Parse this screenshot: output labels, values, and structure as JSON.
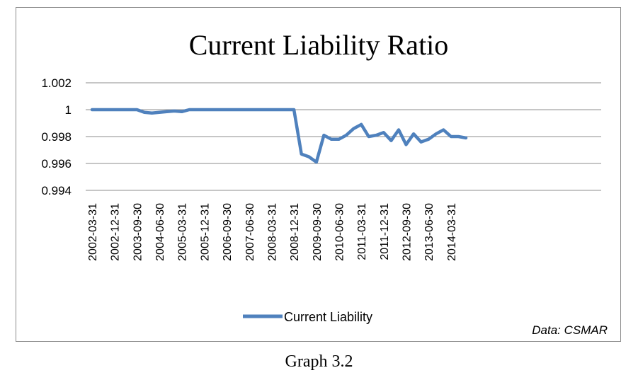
{
  "chart_data": {
    "type": "line",
    "title": "Current Liability Ratio",
    "y_ticks": [
      "1.002",
      "1",
      "0.998",
      "0.996",
      "0.994"
    ],
    "ylim": [
      0.994,
      1.002
    ],
    "x_tick_labels": [
      "2002-03-31",
      "2002-12-31",
      "2003-09-30",
      "2004-06-30",
      "2005-03-31",
      "2005-12-31",
      "2006-09-30",
      "2007-06-30",
      "2008-03-31",
      "2008-12-31",
      "2009-09-30",
      "2010-06-30",
      "2011-03-31",
      "2011-12-31",
      "2012-09-30",
      "2013-06-30",
      "2014-03-31"
    ],
    "x": [
      "2002-03-31",
      "2002-06-30",
      "2002-09-30",
      "2002-12-31",
      "2003-03-31",
      "2003-06-30",
      "2003-09-30",
      "2003-12-31",
      "2004-03-31",
      "2004-06-30",
      "2004-09-30",
      "2004-12-31",
      "2005-03-31",
      "2005-06-30",
      "2005-09-30",
      "2005-12-31",
      "2006-03-31",
      "2006-06-30",
      "2006-09-30",
      "2006-12-31",
      "2007-03-31",
      "2007-06-30",
      "2007-09-30",
      "2007-12-31",
      "2008-03-31",
      "2008-06-30",
      "2008-09-30",
      "2008-12-31",
      "2009-03-31",
      "2009-06-30",
      "2009-09-30",
      "2009-12-31",
      "2010-03-31",
      "2010-06-30",
      "2010-09-30",
      "2010-12-31",
      "2011-03-31",
      "2011-06-30",
      "2011-09-30",
      "2011-12-31",
      "2012-03-31",
      "2012-06-30",
      "2012-09-30",
      "2012-12-31",
      "2013-03-31",
      "2013-06-30",
      "2013-09-30",
      "2013-12-31",
      "2014-03-31",
      "2014-06-30",
      "2014-09-30"
    ],
    "series": [
      {
        "name": "Current Liability",
        "color": "#4f81bd",
        "values": [
          1.0,
          1.0,
          1.0,
          1.0,
          1.0,
          1.0,
          1.0,
          0.9998,
          0.99975,
          0.9998,
          0.99985,
          0.9999,
          0.99985,
          1.0,
          1.0,
          1.0,
          1.0,
          1.0,
          1.0,
          1.0,
          1.0,
          1.0,
          1.0,
          1.0,
          1.0,
          1.0,
          1.0,
          1.0,
          0.9967,
          0.9965,
          0.9961,
          0.9981,
          0.9978,
          0.9978,
          0.9981,
          0.9986,
          0.9989,
          0.998,
          0.9981,
          0.9983,
          0.9977,
          0.9985,
          0.9974,
          0.9982,
          0.9976,
          0.9978,
          0.9982,
          0.9985,
          0.998,
          0.998,
          0.9979
        ]
      }
    ],
    "legend_position": "bottom",
    "grid": true,
    "source_label": "Data",
    "source_name": ": CSMAR"
  },
  "caption": "Graph 3.2"
}
